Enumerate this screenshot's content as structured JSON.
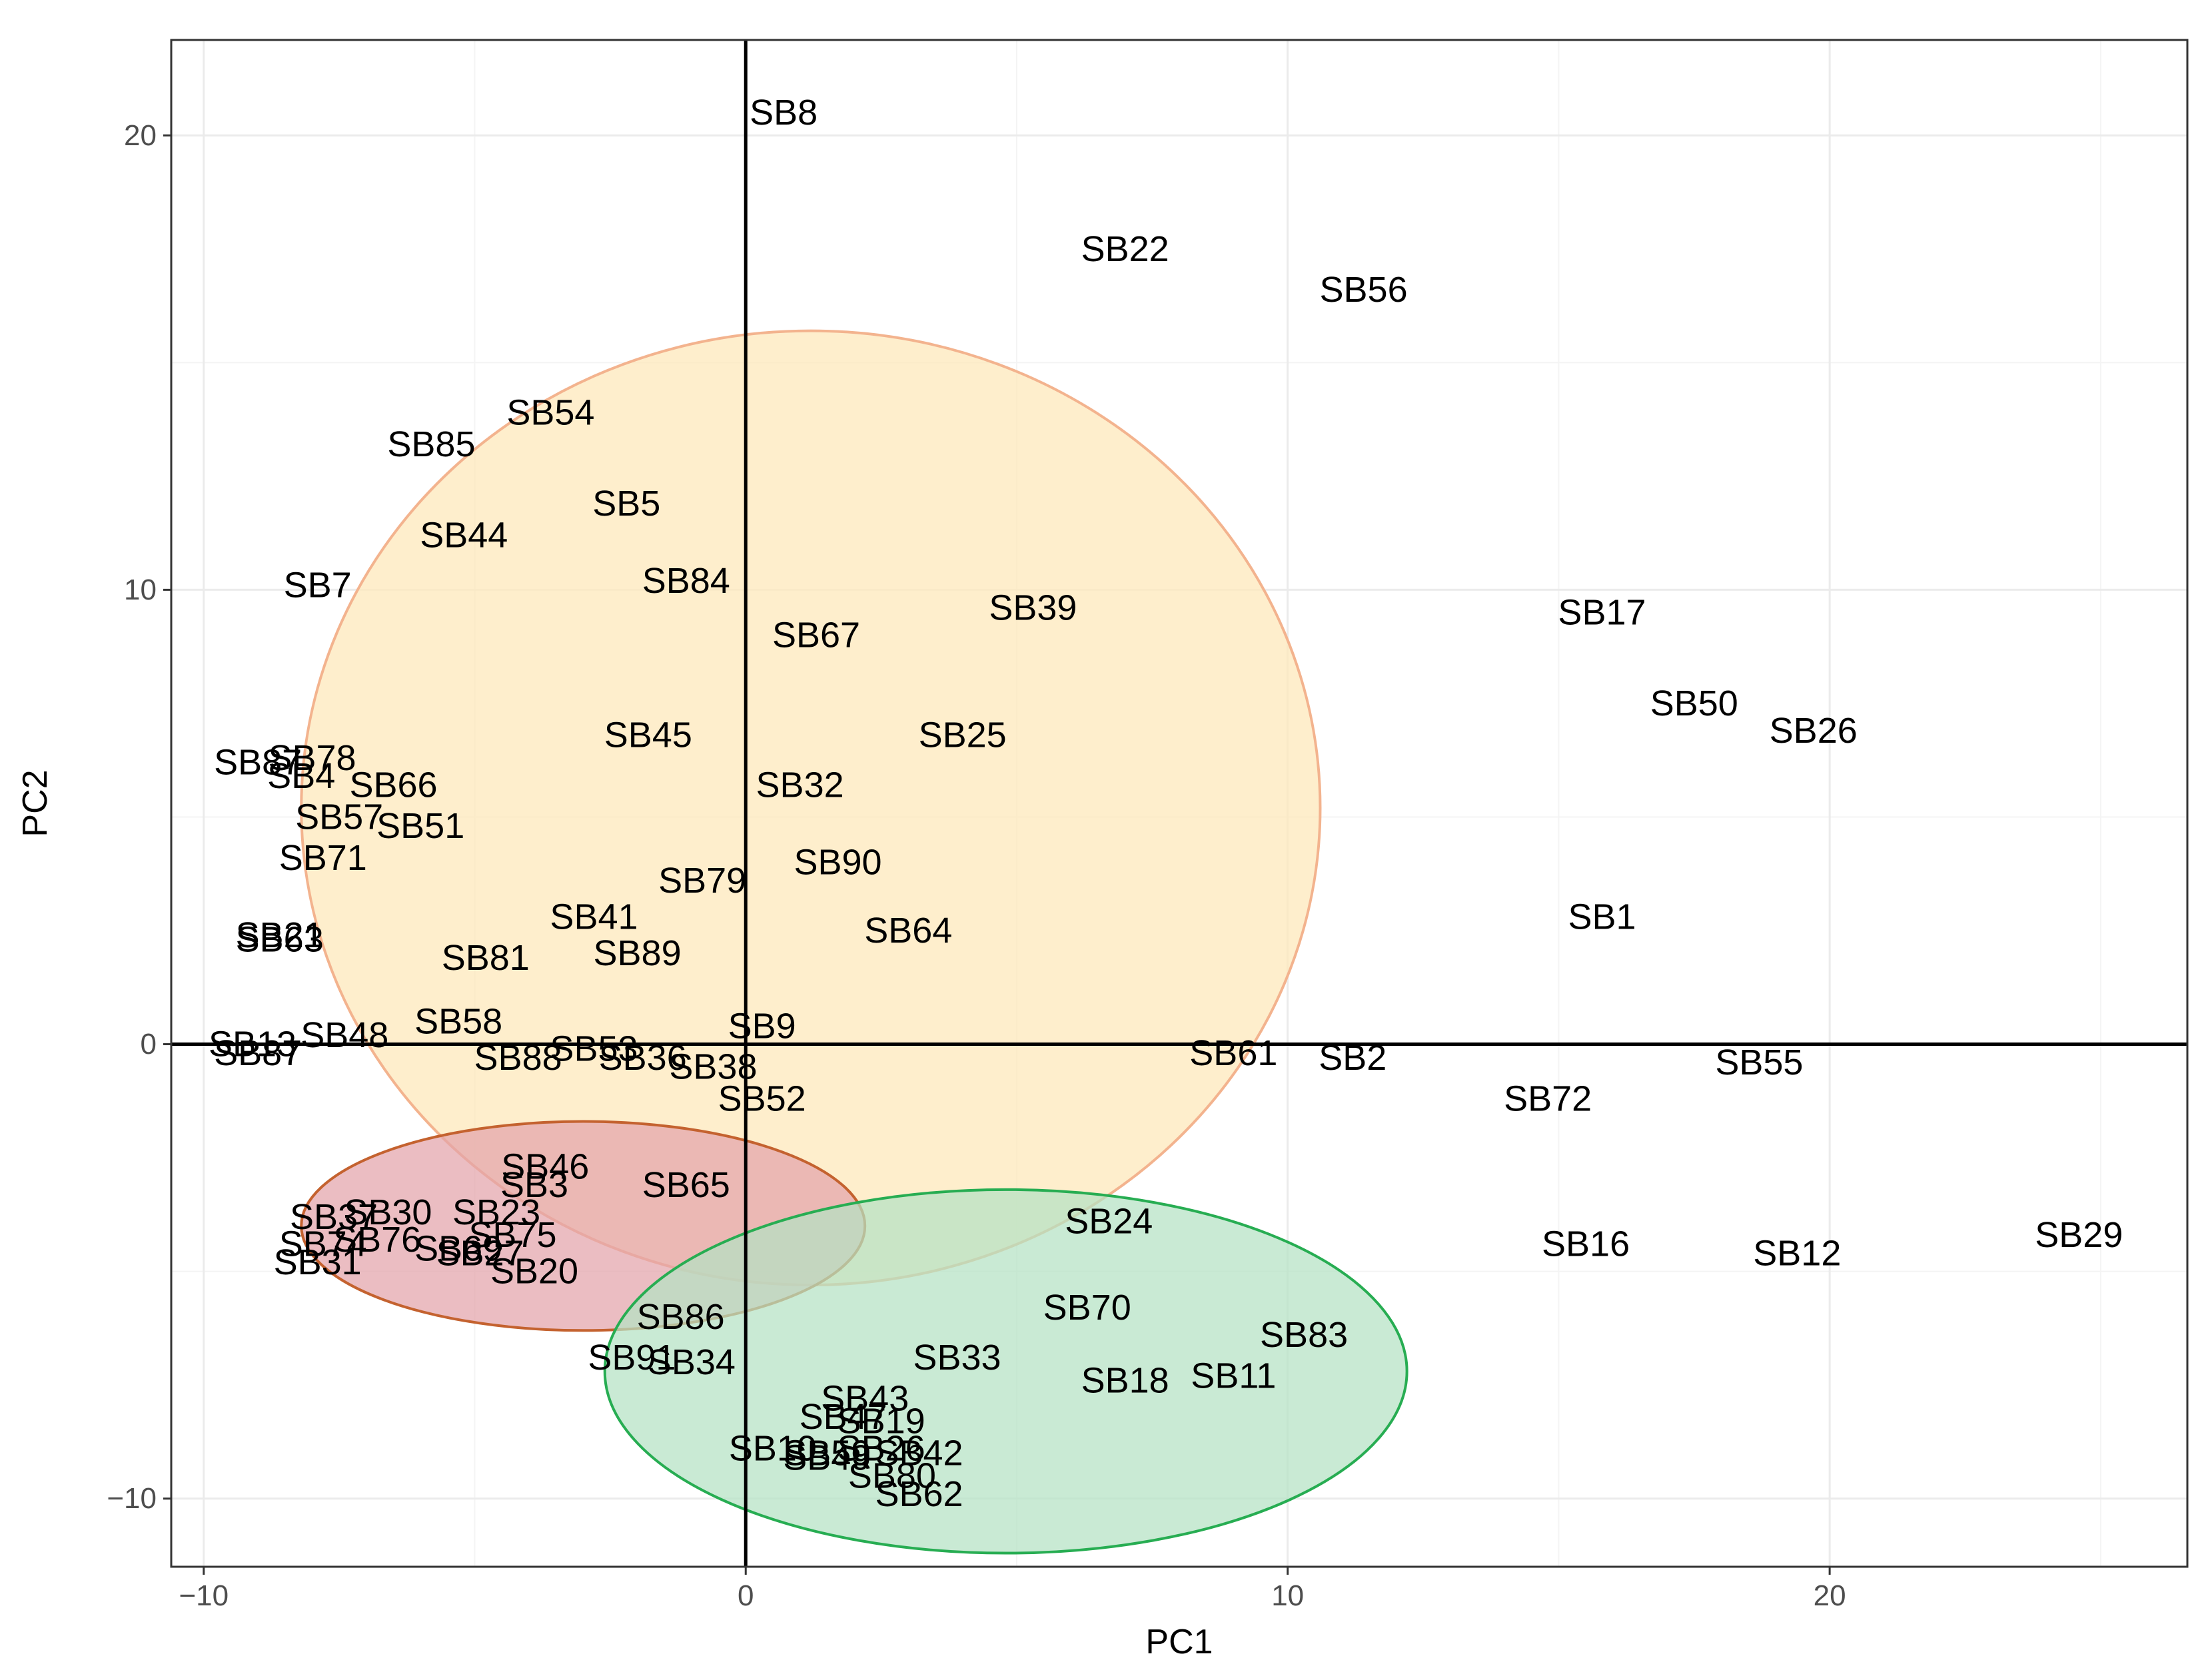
{
  "chart_data": {
    "type": "scatter",
    "title": "",
    "xlabel": "PC1",
    "ylabel": "PC2",
    "xlim": [
      -10.6,
      26.6
    ],
    "ylim": [
      -11.5,
      22.1
    ],
    "x_ticks": [
      -10,
      0,
      10,
      20
    ],
    "y_ticks": [
      -10,
      0,
      10,
      20
    ],
    "x_tick_labels": [
      "−10",
      "0",
      "10",
      "20"
    ],
    "y_tick_labels": [
      "−10",
      "0",
      "10",
      "20"
    ],
    "grid": true,
    "reference_lines": {
      "x": 0,
      "y": 0
    },
    "clusters": [
      {
        "name": "cluster-1",
        "fill": "#fde8b8",
        "stroke": "#f3b38e",
        "cx": 1.2,
        "cy": 5.2,
        "rx": 9.4,
        "ry": 10.5,
        "angle": 0
      },
      {
        "name": "cluster-2",
        "fill": "#e3a4aa",
        "stroke": "#c4622f",
        "cx": -3.0,
        "cy": -4.0,
        "rx": 5.2,
        "ry": 2.3,
        "angle": 0
      },
      {
        "name": "cluster-3",
        "fill": "#b4e2c4",
        "stroke": "#27ad52",
        "cx": 4.8,
        "cy": -7.2,
        "rx": 7.4,
        "ry": 4.0,
        "angle": 0
      }
    ],
    "points": [
      {
        "label": "SB8",
        "x": 0.7,
        "y": 20.5
      },
      {
        "label": "SB22",
        "x": 7.0,
        "y": 17.5
      },
      {
        "label": "SB56",
        "x": 11.4,
        "y": 16.6
      },
      {
        "label": "SB54",
        "x": -3.6,
        "y": 13.9
      },
      {
        "label": "SB85",
        "x": -5.8,
        "y": 13.2
      },
      {
        "label": "SB5",
        "x": -2.2,
        "y": 11.9
      },
      {
        "label": "SB44",
        "x": -5.2,
        "y": 11.2
      },
      {
        "label": "SB7",
        "x": -7.9,
        "y": 10.1
      },
      {
        "label": "SB84",
        "x": -1.1,
        "y": 10.2
      },
      {
        "label": "SB67",
        "x": 1.3,
        "y": 9.0
      },
      {
        "label": "SB39",
        "x": 5.3,
        "y": 9.6
      },
      {
        "label": "SB17",
        "x": 15.8,
        "y": 9.5
      },
      {
        "label": "SB50",
        "x": 17.5,
        "y": 7.5
      },
      {
        "label": "SB26",
        "x": 19.7,
        "y": 6.9
      },
      {
        "label": "SB45",
        "x": -1.8,
        "y": 6.8
      },
      {
        "label": "SB25",
        "x": 4.0,
        "y": 6.8
      },
      {
        "label": "SB78",
        "x": -8.0,
        "y": 6.3
      },
      {
        "label": "SB87",
        "x": -9.0,
        "y": 6.2
      },
      {
        "label": "SB4",
        "x": -8.2,
        "y": 5.9
      },
      {
        "label": "SB66",
        "x": -6.5,
        "y": 5.7
      },
      {
        "label": "SB32",
        "x": 1.0,
        "y": 5.7
      },
      {
        "label": "SB57",
        "x": -7.5,
        "y": 5.0
      },
      {
        "label": "SB51",
        "x": -6.0,
        "y": 4.8
      },
      {
        "label": "SB71",
        "x": -7.8,
        "y": 4.1
      },
      {
        "label": "SB90",
        "x": 1.7,
        "y": 4.0
      },
      {
        "label": "SB79",
        "x": -0.8,
        "y": 3.6
      },
      {
        "label": "SB41",
        "x": -2.8,
        "y": 2.8
      },
      {
        "label": "SB64",
        "x": 3.0,
        "y": 2.5
      },
      {
        "label": "SB1",
        "x": 15.8,
        "y": 2.8
      },
      {
        "label": "SB21",
        "x": -8.6,
        "y": 2.4
      },
      {
        "label": "SB63",
        "x": -8.6,
        "y": 2.3
      },
      {
        "label": "SB89",
        "x": -2.0,
        "y": 2.0
      },
      {
        "label": "SB81",
        "x": -4.8,
        "y": 1.9
      },
      {
        "label": "SB58",
        "x": -5.3,
        "y": 0.5
      },
      {
        "label": "SB48",
        "x": -7.4,
        "y": 0.2
      },
      {
        "label": "SB9",
        "x": 0.3,
        "y": 0.4
      },
      {
        "label": "SB13",
        "x": -9.1,
        "y": 0.0
      },
      {
        "label": "SB87",
        "x": -9.0,
        "y": -0.2
      },
      {
        "label": "SB53",
        "x": -2.8,
        "y": -0.1
      },
      {
        "label": "SB88",
        "x": -4.2,
        "y": -0.3
      },
      {
        "label": "SB36",
        "x": -1.9,
        "y": -0.3
      },
      {
        "label": "SB38",
        "x": -0.6,
        "y": -0.5
      },
      {
        "label": "SB61",
        "x": 9.0,
        "y": -0.2
      },
      {
        "label": "SB2",
        "x": 11.2,
        "y": -0.3
      },
      {
        "label": "SB55",
        "x": 18.7,
        "y": -0.4
      },
      {
        "label": "SB72",
        "x": 14.8,
        "y": -1.2
      },
      {
        "label": "SB52",
        "x": 0.3,
        "y": -1.2
      },
      {
        "label": "SB46",
        "x": -3.7,
        "y": -2.7
      },
      {
        "label": "SB3",
        "x": -3.9,
        "y": -3.1
      },
      {
        "label": "SB65",
        "x": -1.1,
        "y": -3.1
      },
      {
        "label": "SB37",
        "x": -7.6,
        "y": -3.8
      },
      {
        "label": "SB30",
        "x": -6.6,
        "y": -3.7
      },
      {
        "label": "SB23",
        "x": -4.6,
        "y": -3.7
      },
      {
        "label": "SB75",
        "x": -4.3,
        "y": -4.2
      },
      {
        "label": "SB74",
        "x": -7.8,
        "y": -4.4
      },
      {
        "label": "SB76",
        "x": -6.8,
        "y": -4.3
      },
      {
        "label": "SB69",
        "x": -5.3,
        "y": -4.5
      },
      {
        "label": "SB27",
        "x": -4.9,
        "y": -4.6
      },
      {
        "label": "SB31",
        "x": -7.9,
        "y": -4.8
      },
      {
        "label": "SB20",
        "x": -3.9,
        "y": -5.0
      },
      {
        "label": "SB24",
        "x": 6.7,
        "y": -3.9
      },
      {
        "label": "SB16",
        "x": 15.5,
        "y": -4.4
      },
      {
        "label": "SB12",
        "x": 19.4,
        "y": -4.6
      },
      {
        "label": "SB29",
        "x": 24.6,
        "y": -4.2
      },
      {
        "label": "SB86",
        "x": -1.2,
        "y": -6.0
      },
      {
        "label": "SB70",
        "x": 6.3,
        "y": -5.8
      },
      {
        "label": "SB83",
        "x": 10.3,
        "y": -6.4
      },
      {
        "label": "SB91",
        "x": -2.1,
        "y": -6.9
      },
      {
        "label": "SB34",
        "x": -1.0,
        "y": -7.0
      },
      {
        "label": "SB33",
        "x": 3.9,
        "y": -6.9
      },
      {
        "label": "SB18",
        "x": 7.0,
        "y": -7.4
      },
      {
        "label": "SB11",
        "x": 9.0,
        "y": -7.3
      },
      {
        "label": "SB43",
        "x": 2.2,
        "y": -7.8
      },
      {
        "label": "SB47",
        "x": 1.8,
        "y": -8.2
      },
      {
        "label": "SB19",
        "x": 2.5,
        "y": -8.3
      },
      {
        "label": "SB10",
        "x": 0.5,
        "y": -8.9
      },
      {
        "label": "SB59",
        "x": 1.5,
        "y": -9.0
      },
      {
        "label": "SB49",
        "x": 1.5,
        "y": -9.1
      },
      {
        "label": "SB26",
        "x": 2.5,
        "y": -8.9
      },
      {
        "label": "SB42",
        "x": 3.2,
        "y": -9.0
      },
      {
        "label": "SB80",
        "x": 2.7,
        "y": -9.5
      },
      {
        "label": "SB62",
        "x": 3.2,
        "y": -9.9
      }
    ]
  }
}
